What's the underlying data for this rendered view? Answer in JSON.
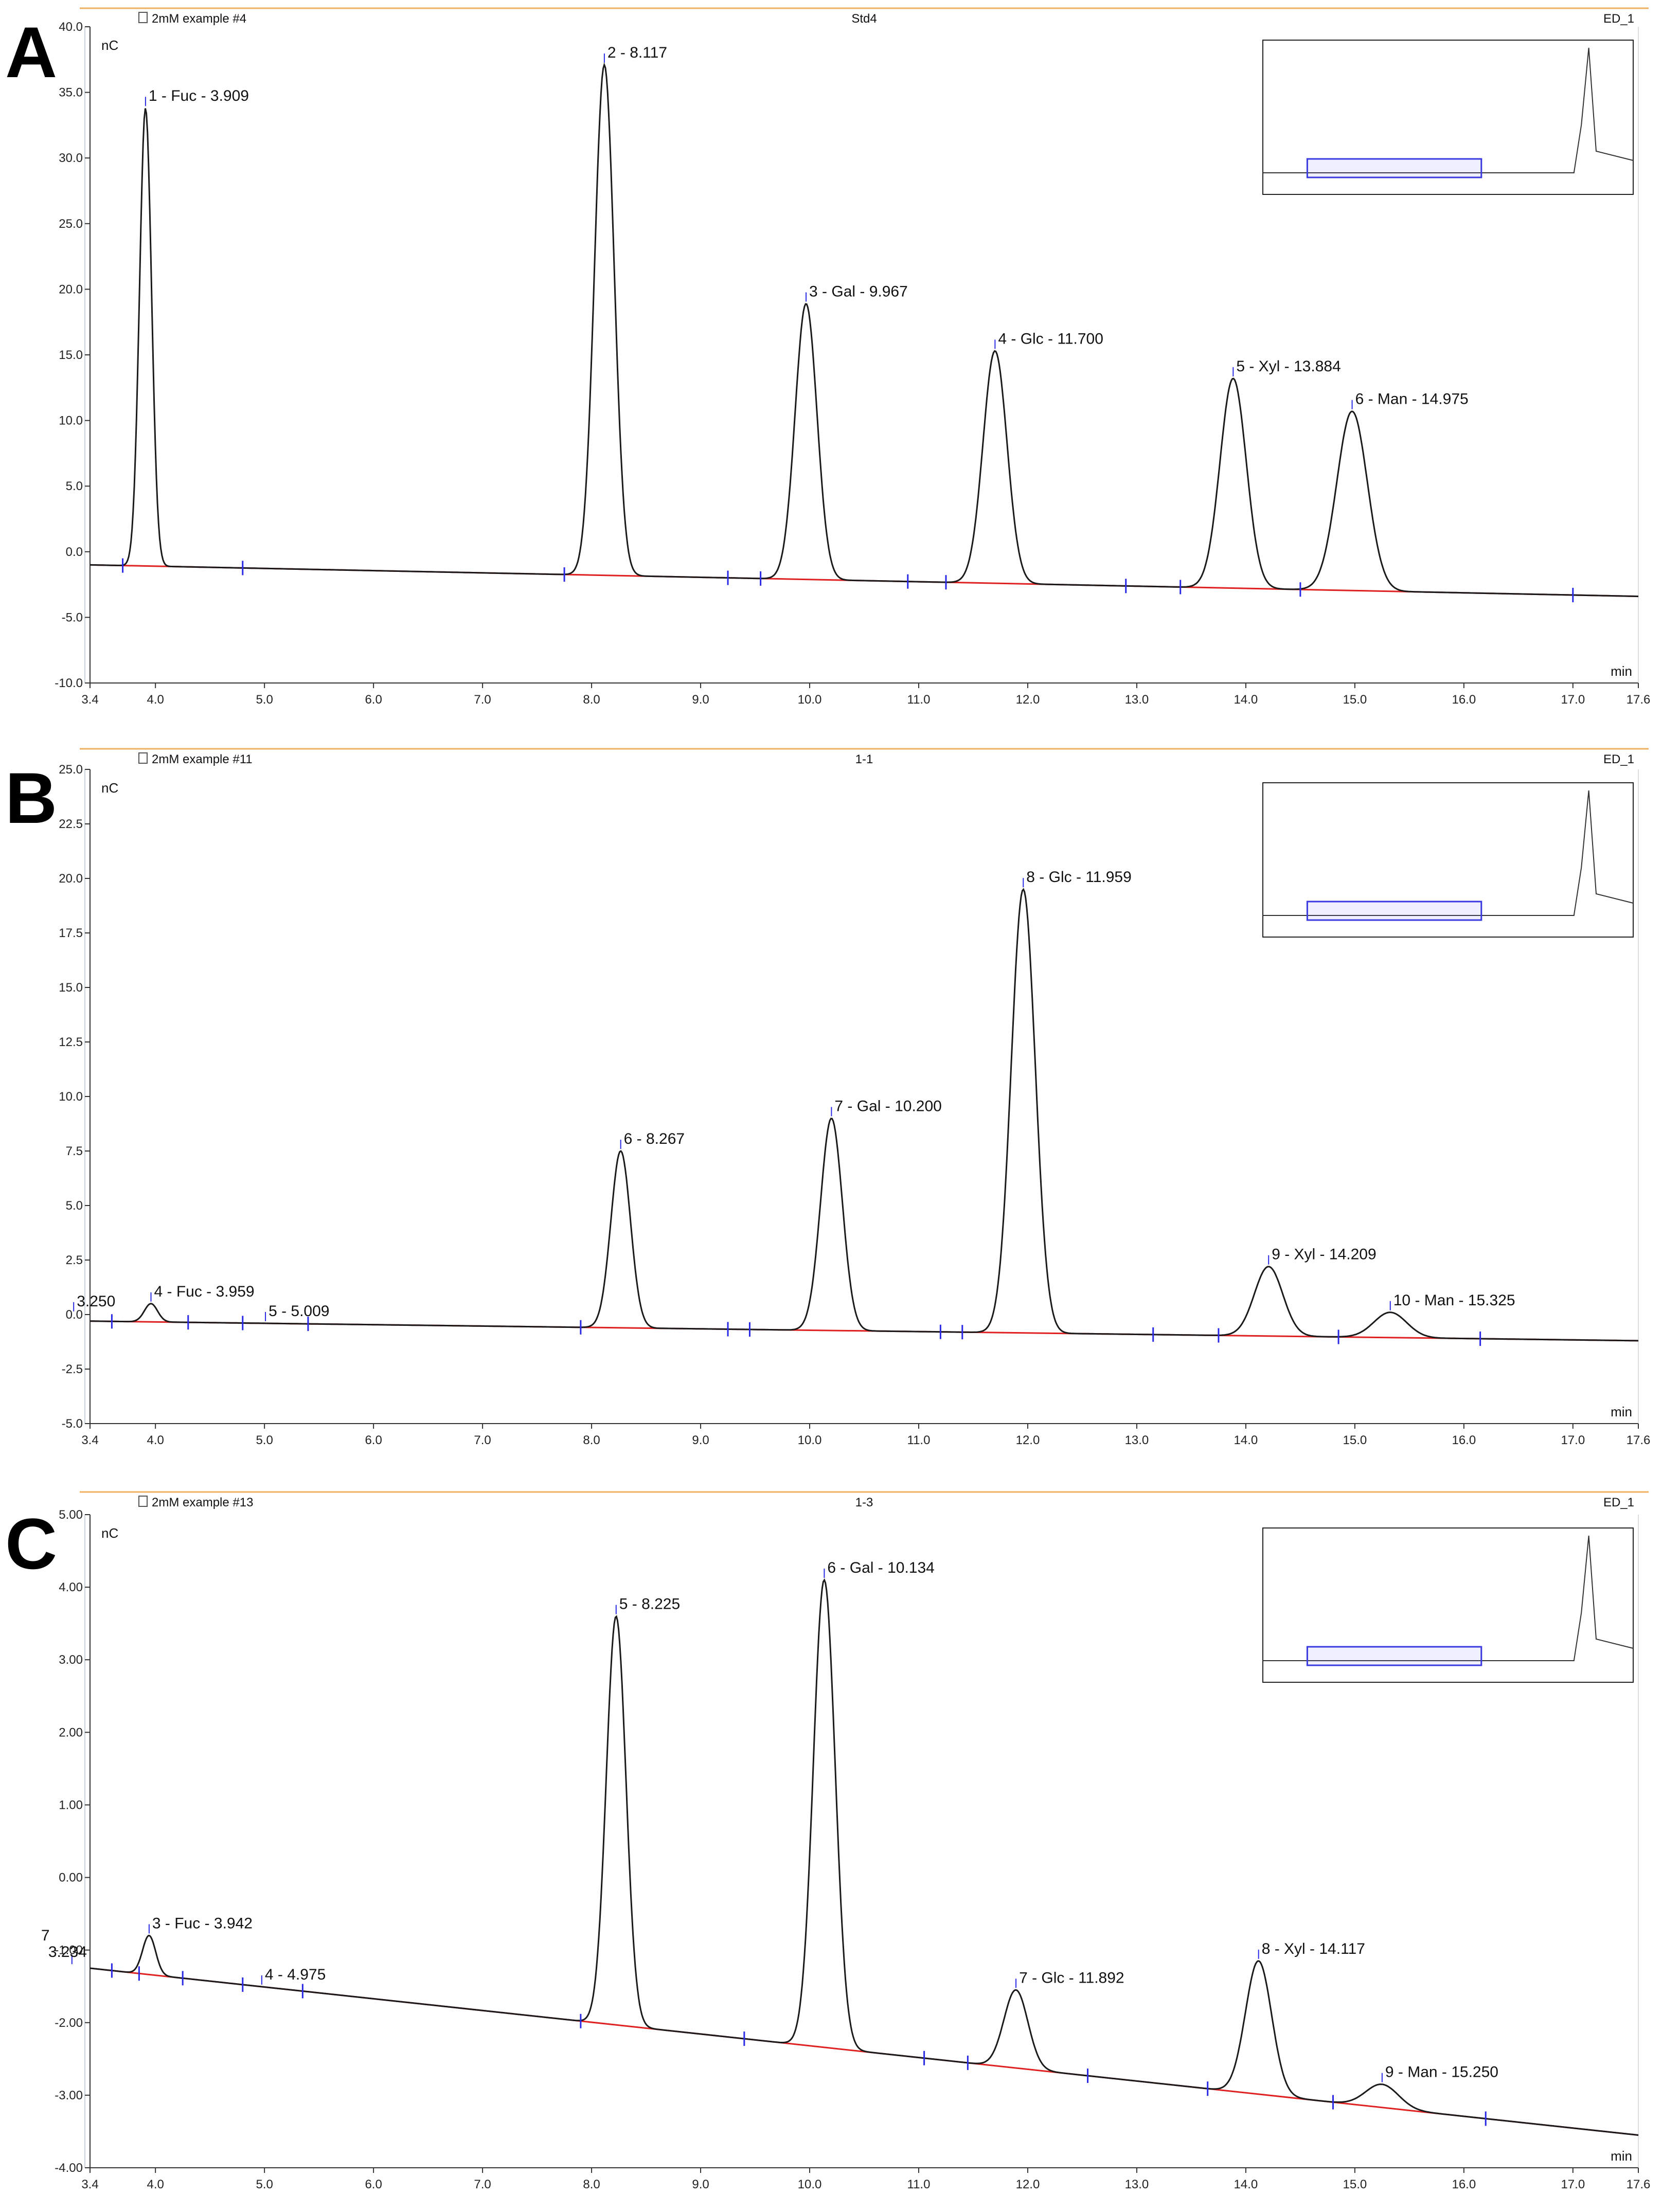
{
  "colors": {
    "trace": "#1a1a1a",
    "baseline": "#e02020",
    "marker": "#2a2ae6",
    "header_rule": "#f0b060",
    "inset_box": "#3a3ae0",
    "axis": "#333333"
  },
  "chart_data": [
    {
      "type": "line",
      "panel": "A",
      "header_left": "2mM example #4",
      "header_center": "Std4",
      "header_right": "ED_1",
      "ylabel": "nC",
      "xlabel": "min",
      "xlim": [
        3.4,
        17.6
      ],
      "ylim": [
        -10.0,
        40.0
      ],
      "x_ticks": [
        3.4,
        4.0,
        5.0,
        6.0,
        7.0,
        8.0,
        9.0,
        10.0,
        11.0,
        12.0,
        13.0,
        14.0,
        15.0,
        16.0,
        17.0,
        17.6
      ],
      "x_tick_labels": [
        "3.4",
        "4.0",
        "5.0",
        "6.0",
        "7.0",
        "8.0",
        "9.0",
        "10.0",
        "11.0",
        "12.0",
        "13.0",
        "14.0",
        "15.0",
        "16.0",
        "17.0",
        "17.6"
      ],
      "y_ticks": [
        -10,
        -5,
        0,
        5,
        10,
        15,
        20,
        25,
        30,
        35,
        40
      ],
      "y_tick_labels": [
        "-10.0",
        "-5.0",
        "0.0",
        "5.0",
        "10.0",
        "15.0",
        "20.0",
        "25.0",
        "30.0",
        "35.0",
        "40.0"
      ],
      "baseline": [
        [
          3.4,
          -1.0
        ],
        [
          17.6,
          -3.4
        ]
      ],
      "peaks": [
        {
          "label": "1 - Fuc - 3.909",
          "rt": 3.909,
          "height": 33.8,
          "sigma": 0.055
        },
        {
          "label": "2 - 8.117",
          "rt": 8.117,
          "height": 37.1,
          "sigma": 0.09
        },
        {
          "label": "3 - Gal - 9.967",
          "rt": 9.967,
          "height": 18.9,
          "sigma": 0.1
        },
        {
          "label": "4 - Glc - 11.700",
          "rt": 11.7,
          "height": 15.3,
          "sigma": 0.11
        },
        {
          "label": "5 - Xyl - 13.884",
          "rt": 13.884,
          "height": 13.2,
          "sigma": 0.12
        },
        {
          "label": "6 - Man - 14.975",
          "rt": 14.975,
          "height": 10.7,
          "sigma": 0.14
        }
      ],
      "markers": [
        3.7,
        4.8,
        7.75,
        9.25,
        9.55,
        10.9,
        11.25,
        12.9,
        13.4,
        14.5,
        17.0
      ]
    },
    {
      "type": "line",
      "panel": "B",
      "header_left": "2mM example #11",
      "header_center": "1-1",
      "header_right": "ED_1",
      "ylabel": "nC",
      "xlabel": "min",
      "xlim": [
        3.4,
        17.6
      ],
      "ylim": [
        -5.0,
        25.0
      ],
      "x_ticks": [
        3.4,
        4.0,
        5.0,
        6.0,
        7.0,
        8.0,
        9.0,
        10.0,
        11.0,
        12.0,
        13.0,
        14.0,
        15.0,
        16.0,
        17.0,
        17.6
      ],
      "x_tick_labels": [
        "3.4",
        "4.0",
        "5.0",
        "6.0",
        "7.0",
        "8.0",
        "9.0",
        "10.0",
        "11.0",
        "12.0",
        "13.0",
        "14.0",
        "15.0",
        "16.0",
        "17.0",
        "17.6"
      ],
      "y_ticks": [
        -5,
        -2.5,
        0,
        2.5,
        5,
        7.5,
        10,
        12.5,
        15,
        17.5,
        20,
        22.5,
        25
      ],
      "y_tick_labels": [
        "-5.0",
        "-2.5",
        "0.0",
        "2.5",
        "5.0",
        "7.5",
        "10.0",
        "12.5",
        "15.0",
        "17.5",
        "20.0",
        "22.5",
        "25.0"
      ],
      "baseline": [
        [
          3.4,
          -0.3
        ],
        [
          17.6,
          -1.2
        ]
      ],
      "peaks": [
        {
          "label": "3.250",
          "rt": 3.25,
          "height": 0.05,
          "sigma": 0.04
        },
        {
          "label": "4 - Fuc - 3.959",
          "rt": 3.959,
          "height": 0.5,
          "sigma": 0.06
        },
        {
          "label": "5 - 5.009",
          "rt": 5.009,
          "height": -0.4,
          "sigma": 0.07
        },
        {
          "label": "6 - 8.267",
          "rt": 8.267,
          "height": 7.5,
          "sigma": 0.09
        },
        {
          "label": "7 - Gal - 10.200",
          "rt": 10.2,
          "height": 9.0,
          "sigma": 0.1
        },
        {
          "label": "8 - Glc - 11.959",
          "rt": 11.959,
          "height": 19.5,
          "sigma": 0.11
        },
        {
          "label": "9 - Xyl - 14.209",
          "rt": 14.209,
          "height": 2.2,
          "sigma": 0.13
        },
        {
          "label": "10 - Man - 15.325",
          "rt": 15.325,
          "height": 0.1,
          "sigma": 0.15
        }
      ],
      "markers": [
        3.6,
        4.3,
        4.8,
        5.4,
        7.9,
        9.25,
        9.45,
        11.2,
        11.4,
        13.15,
        13.75,
        14.85,
        16.15
      ]
    },
    {
      "type": "line",
      "panel": "C",
      "header_left": "2mM example #13",
      "header_center": "1-3",
      "header_right": "ED_1",
      "ylabel": "nC",
      "xlabel": "min",
      "xlim": [
        3.4,
        17.6
      ],
      "ylim": [
        -4.0,
        5.0
      ],
      "x_ticks": [
        3.4,
        4.0,
        5.0,
        6.0,
        7.0,
        8.0,
        9.0,
        10.0,
        11.0,
        12.0,
        13.0,
        14.0,
        15.0,
        16.0,
        17.0,
        17.6
      ],
      "x_tick_labels": [
        "3.4",
        "4.0",
        "5.0",
        "6.0",
        "7.0",
        "8.0",
        "9.0",
        "10.0",
        "11.0",
        "12.0",
        "13.0",
        "14.0",
        "15.0",
        "16.0",
        "17.0",
        "17.6"
      ],
      "y_ticks": [
        -4,
        -3,
        -2,
        -1,
        0,
        1,
        2,
        3,
        4,
        5
      ],
      "y_tick_labels": [
        "-4.00",
        "-3.00",
        "-2.00",
        "-1.00",
        "0.00",
        "1.00",
        "2.00",
        "3.00",
        "4.00",
        "5.00"
      ],
      "baseline": [
        [
          3.4,
          -1.25
        ],
        [
          17.6,
          -3.55
        ]
      ],
      "peaks": [
        {
          "label": "7\n3.234",
          "rt": 3.234,
          "height": -1.3,
          "sigma": 0.04
        },
        {
          "label": "3 - Fuc - 3.942",
          "rt": 3.942,
          "height": -0.8,
          "sigma": 0.06
        },
        {
          "label": "4 - 4.975",
          "rt": 4.975,
          "height": -1.55,
          "sigma": 0.07
        },
        {
          "label": "5 - 8.225",
          "rt": 8.225,
          "height": 3.6,
          "sigma": 0.09
        },
        {
          "label": "6 - Gal - 10.134",
          "rt": 10.134,
          "height": 4.1,
          "sigma": 0.1
        },
        {
          "label": "7 - Glc - 11.892",
          "rt": 11.892,
          "height": -1.55,
          "sigma": 0.11
        },
        {
          "label": "8 - Xyl - 14.117",
          "rt": 14.117,
          "height": -1.15,
          "sigma": 0.12
        },
        {
          "label": "9 - Man - 15.250",
          "rt": 15.25,
          "height": -2.85,
          "sigma": 0.15
        }
      ],
      "markers": [
        3.6,
        3.85,
        4.25,
        4.8,
        5.35,
        7.9,
        9.4,
        11.05,
        11.45,
        12.55,
        13.65,
        14.8,
        16.2
      ]
    }
  ]
}
